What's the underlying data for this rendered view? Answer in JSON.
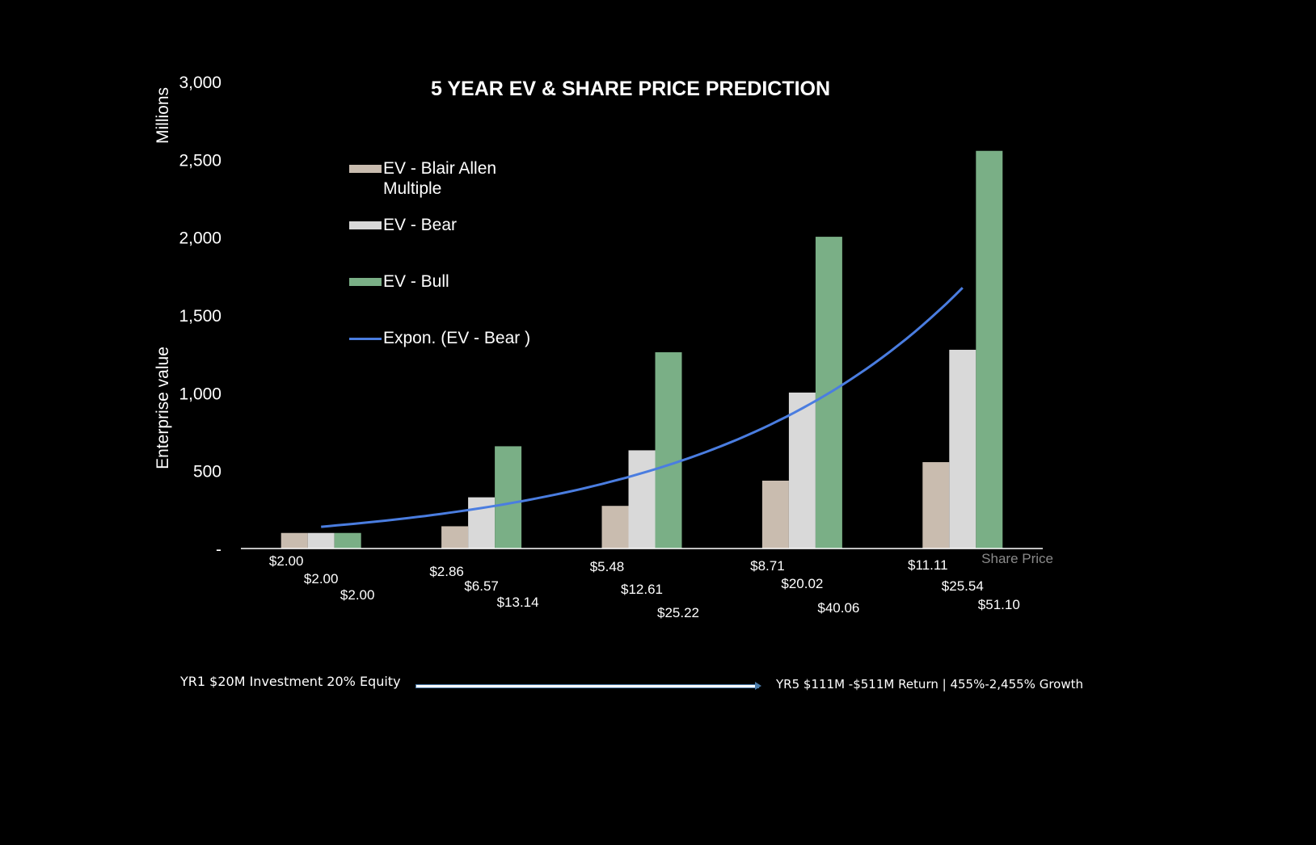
{
  "chart_data": {
    "type": "bar",
    "title": "5 YEAR EV & SHARE PRICE PREDICTION",
    "ylabel": "Enterprise value",
    "yunit": "Millions",
    "xlabel": "Share Price",
    "ylim": [
      0,
      3000
    ],
    "yticks": [
      0,
      500,
      1000,
      1500,
      2000,
      2500,
      3000
    ],
    "ytick_labels": [
      "-",
      "500",
      "1,000",
      "1,500",
      "2,000",
      "2,500",
      "3,000"
    ],
    "series": [
      {
        "name": "EV - Blair Allen Multiple",
        "color": "#c9bcaf",
        "values": [
          100,
          143,
          274,
          436,
          555
        ]
      },
      {
        "name": "EV - Bear",
        "color": "#d9d9d9",
        "values": [
          100,
          329,
          631,
          1002,
          1277
        ]
      },
      {
        "name": "EV - Bull",
        "color": "#7aaf86",
        "values": [
          100,
          657,
          1261,
          2003,
          2555
        ]
      }
    ],
    "trendline": {
      "name": "Expon. (EV - Bear )",
      "color": "#4a7de0",
      "based_on": "EV - Bear"
    },
    "data_labels": [
      [
        "$2.00",
        "$2.00",
        "$2.00"
      ],
      [
        "$2.86",
        "$6.57",
        "$13.14"
      ],
      [
        "$5.48",
        "$12.61",
        "$25.22"
      ],
      [
        "$8.71",
        "$20.02",
        "$40.06"
      ],
      [
        "$11.11",
        "$25.54",
        "$51.10"
      ]
    ],
    "legend": "top-left",
    "grid": false
  },
  "legend_labels": {
    "blair": "EV - Blair Allen Multiple",
    "bear": "EV - Bear",
    "bull": "EV - Bull",
    "trend": "Expon. (EV - Bear )"
  },
  "footer": {
    "left": "YR1 $20M Investment 20% Equity",
    "right": "YR5 $111M -$511M Return | 455%-2,455% Growth"
  }
}
